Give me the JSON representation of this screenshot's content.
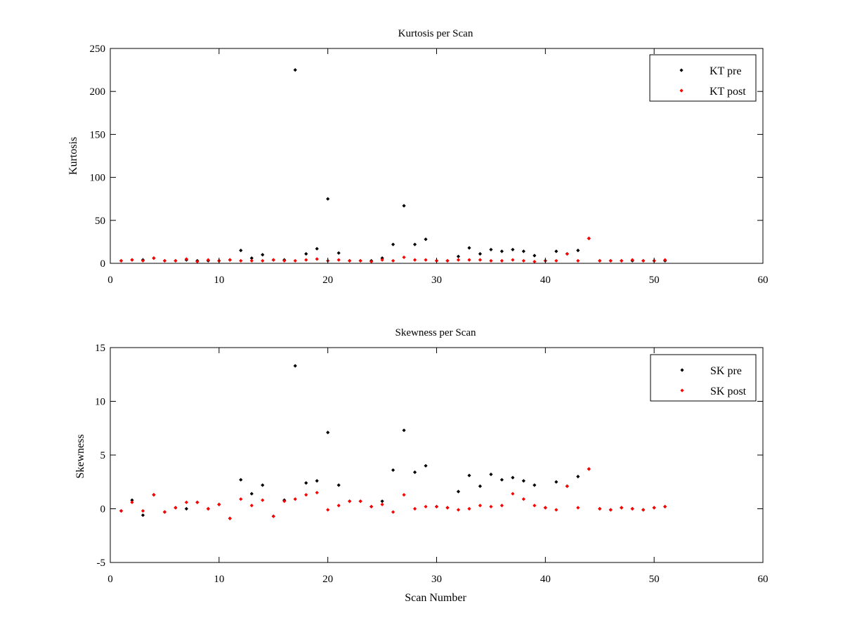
{
  "chart_data": [
    {
      "type": "scatter",
      "title": "Kurtosis per Scan",
      "xlabel": "",
      "ylabel": "Kurtosis",
      "xlim": [
        0,
        60
      ],
      "ylim": [
        0,
        250
      ],
      "xticks": [
        0,
        10,
        20,
        30,
        40,
        50,
        60
      ],
      "yticks": [
        0,
        50,
        100,
        150,
        200,
        250
      ],
      "grid": false,
      "legend_position": "top-right",
      "series": [
        {
          "name": "KT pre",
          "color": "#000000",
          "x": [
            1,
            2,
            3,
            4,
            5,
            6,
            7,
            8,
            9,
            10,
            11,
            12,
            13,
            14,
            15,
            16,
            17,
            18,
            19,
            20,
            21,
            22,
            23,
            24,
            25,
            26,
            27,
            28,
            29,
            30,
            31,
            32,
            33,
            34,
            35,
            36,
            37,
            38,
            39,
            40,
            41,
            42,
            43,
            44,
            45,
            46,
            47,
            48,
            49,
            50,
            51
          ],
          "y": [
            3,
            4,
            4,
            6,
            3,
            3,
            4,
            3,
            3,
            3,
            4,
            15,
            6,
            10,
            4,
            4,
            225,
            11,
            17,
            75,
            12,
            3,
            3,
            3,
            6,
            22,
            67,
            22,
            28,
            3,
            3,
            8,
            18,
            11,
            16,
            14,
            16,
            14,
            9,
            3,
            14,
            11,
            15,
            29,
            3,
            3,
            3,
            3,
            3,
            3,
            3
          ]
        },
        {
          "name": "KT post",
          "color": "#ff0000",
          "x": [
            1,
            2,
            3,
            4,
            5,
            6,
            7,
            8,
            9,
            10,
            11,
            12,
            13,
            14,
            15,
            16,
            17,
            18,
            19,
            20,
            21,
            22,
            23,
            24,
            25,
            26,
            27,
            28,
            29,
            30,
            31,
            32,
            33,
            34,
            35,
            36,
            37,
            38,
            39,
            40,
            41,
            42,
            43,
            44,
            45,
            46,
            47,
            48,
            49,
            50,
            51
          ],
          "y": [
            3,
            4,
            3,
            6,
            3,
            3,
            5,
            2,
            4,
            3,
            4,
            3,
            3,
            3,
            4,
            3,
            3,
            4,
            5,
            3,
            4,
            3,
            3,
            2,
            4,
            3,
            7,
            4,
            4,
            3,
            3,
            4,
            4,
            4,
            3,
            3,
            4,
            3,
            2,
            3,
            3,
            11,
            3,
            29,
            3,
            3,
            3,
            4,
            3,
            3,
            4
          ]
        }
      ]
    },
    {
      "type": "scatter",
      "title": "Skewness per Scan",
      "xlabel": "Scan Number",
      "ylabel": "Skewness",
      "xlim": [
        0,
        60
      ],
      "ylim": [
        -5,
        15
      ],
      "xticks": [
        0,
        10,
        20,
        30,
        40,
        50,
        60
      ],
      "yticks": [
        -5,
        0,
        5,
        10,
        15
      ],
      "grid": false,
      "legend_position": "top-right",
      "series": [
        {
          "name": "SK pre",
          "color": "#000000",
          "x": [
            1,
            2,
            3,
            4,
            5,
            6,
            7,
            8,
            9,
            10,
            11,
            12,
            13,
            14,
            15,
            16,
            17,
            18,
            19,
            20,
            21,
            22,
            23,
            24,
            25,
            26,
            27,
            28,
            29,
            30,
            31,
            32,
            33,
            34,
            35,
            36,
            37,
            38,
            39,
            40,
            41,
            42,
            43,
            44,
            45,
            46,
            47,
            48,
            49,
            50,
            51
          ],
          "y": [
            -0.2,
            0.8,
            -0.6,
            1.3,
            -0.3,
            0.1,
            0.0,
            0.6,
            0.0,
            0.4,
            -0.9,
            2.7,
            1.4,
            2.2,
            -0.7,
            0.8,
            13.3,
            2.4,
            2.6,
            7.1,
            2.2,
            0.7,
            0.7,
            0.2,
            0.7,
            3.6,
            7.3,
            3.4,
            4.0,
            0.2,
            0.1,
            1.6,
            3.1,
            2.1,
            3.2,
            2.7,
            2.9,
            2.6,
            2.2,
            0.1,
            2.5,
            2.1,
            3.0,
            3.7,
            0.0,
            -0.1,
            0.1,
            0.0,
            -0.1,
            0.1,
            0.2
          ]
        },
        {
          "name": "SK post",
          "color": "#ff0000",
          "x": [
            1,
            2,
            3,
            4,
            5,
            6,
            7,
            8,
            9,
            10,
            11,
            12,
            13,
            14,
            15,
            16,
            17,
            18,
            19,
            20,
            21,
            22,
            23,
            24,
            25,
            26,
            27,
            28,
            29,
            30,
            31,
            32,
            33,
            34,
            35,
            36,
            37,
            38,
            39,
            40,
            41,
            42,
            43,
            44,
            45,
            46,
            47,
            48,
            49,
            50,
            51
          ],
          "y": [
            -0.2,
            0.6,
            -0.2,
            1.3,
            -0.3,
            0.1,
            0.6,
            0.6,
            0.0,
            0.4,
            -0.9,
            0.9,
            0.3,
            0.8,
            -0.7,
            0.7,
            0.9,
            1.3,
            1.5,
            -0.1,
            0.3,
            0.7,
            0.7,
            0.2,
            0.4,
            -0.3,
            1.3,
            0.0,
            0.2,
            0.2,
            0.1,
            -0.1,
            0.0,
            0.3,
            0.2,
            0.3,
            1.4,
            0.9,
            0.3,
            0.1,
            -0.1,
            2.1,
            0.1,
            3.7,
            0.0,
            -0.1,
            0.1,
            0.0,
            -0.1,
            0.1,
            0.2
          ]
        }
      ]
    }
  ]
}
